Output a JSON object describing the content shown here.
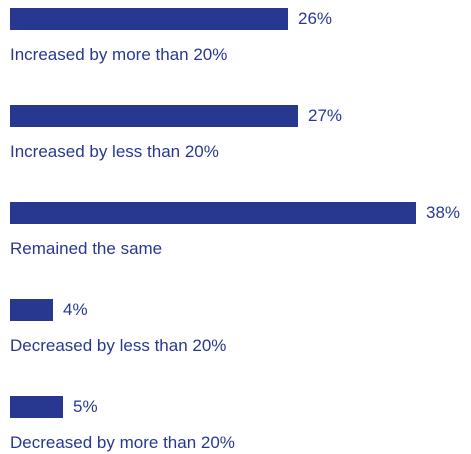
{
  "chart_data": {
    "type": "bar",
    "orientation": "horizontal",
    "categories": [
      "Increased by more than 20%",
      "Increased by less than 20%",
      "Remained the same",
      "Decreased by less than 20%",
      "Decreased by more than 20%"
    ],
    "values": [
      26,
      27,
      38,
      4,
      5
    ],
    "value_labels": [
      "26%",
      "27%",
      "38%",
      "4%",
      "5%"
    ],
    "bar_color": "#283891",
    "text_color": "#283891",
    "xlim": [
      0,
      38
    ],
    "grid": false,
    "legend": "none"
  }
}
